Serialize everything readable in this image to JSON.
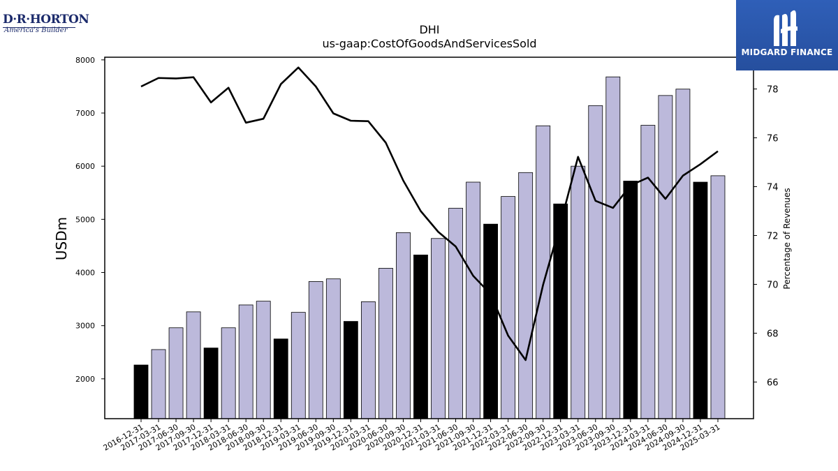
{
  "logos": {
    "company_brand": "D·R·HORTON",
    "company_tagline": "America's Builder",
    "publisher_name": "MIDGARD FINANCE"
  },
  "chart_data": {
    "type": "bar",
    "title": "DHI",
    "subtitle": "us-gaap:CostOfGoodsAndServicesSold",
    "ylabel": "USDm",
    "y2label": "Percentage of Revenues",
    "ylim": [
      1250,
      8050
    ],
    "y2lim": [
      64.5,
      79.3
    ],
    "yticks": [
      2000,
      3000,
      4000,
      5000,
      6000,
      7000,
      8000
    ],
    "y2ticks": [
      66,
      68,
      70,
      72,
      74,
      76,
      78
    ],
    "categories": [
      "2016-12-31",
      "2017-03-31",
      "2017-06-30",
      "2017-09-30",
      "2017-12-31",
      "2018-03-31",
      "2018-06-30",
      "2018-09-30",
      "2018-12-31",
      "2019-03-31",
      "2019-06-30",
      "2019-09-30",
      "2019-12-31",
      "2020-03-31",
      "2020-06-30",
      "2020-09-30",
      "2020-12-31",
      "2021-03-31",
      "2021-06-30",
      "2021-09-30",
      "2021-12-31",
      "2022-03-31",
      "2022-06-30",
      "2022-09-30",
      "2022-12-31",
      "2023-03-31",
      "2023-06-30",
      "2023-09-30",
      "2023-12-31",
      "2024-03-31",
      "2024-06-30",
      "2024-09-30",
      "2024-12-31",
      "2025-03-31"
    ],
    "series": [
      {
        "name": "",
        "kind": "bar",
        "values": [
          2260,
          2550,
          2960,
          3260,
          2580,
          2960,
          3390,
          3460,
          2750,
          3250,
          3830,
          3880,
          3080,
          3450,
          4080,
          4750,
          4330,
          4640,
          5210,
          5700,
          4910,
          5430,
          5880,
          6760,
          5290,
          6000,
          7140,
          7680,
          5720,
          6770,
          7330,
          7450,
          5700,
          5820
        ],
        "highlight": [
          true,
          false,
          false,
          false,
          true,
          false,
          false,
          false,
          true,
          false,
          false,
          false,
          true,
          false,
          false,
          false,
          true,
          false,
          false,
          false,
          true,
          false,
          false,
          false,
          true,
          false,
          false,
          false,
          true,
          false,
          false,
          false,
          true,
          false
        ]
      },
      {
        "name": "",
        "kind": "line",
        "axis": "right",
        "values": [
          78.1,
          78.45,
          78.43,
          78.48,
          77.45,
          78.05,
          76.62,
          76.78,
          78.2,
          78.88,
          78.1,
          77.0,
          76.7,
          76.68,
          75.8,
          74.25,
          73.0,
          72.15,
          71.55,
          70.35,
          69.6,
          67.9,
          66.9,
          69.98,
          72.5,
          75.22,
          73.42,
          73.13,
          74.05,
          74.37,
          73.5,
          74.45,
          74.92,
          75.45
        ]
      }
    ],
    "colors": {
      "bar": "#bcb9db",
      "bar_highlight": "#000000",
      "line": "#000000"
    },
    "grid": false,
    "legend": "none"
  }
}
